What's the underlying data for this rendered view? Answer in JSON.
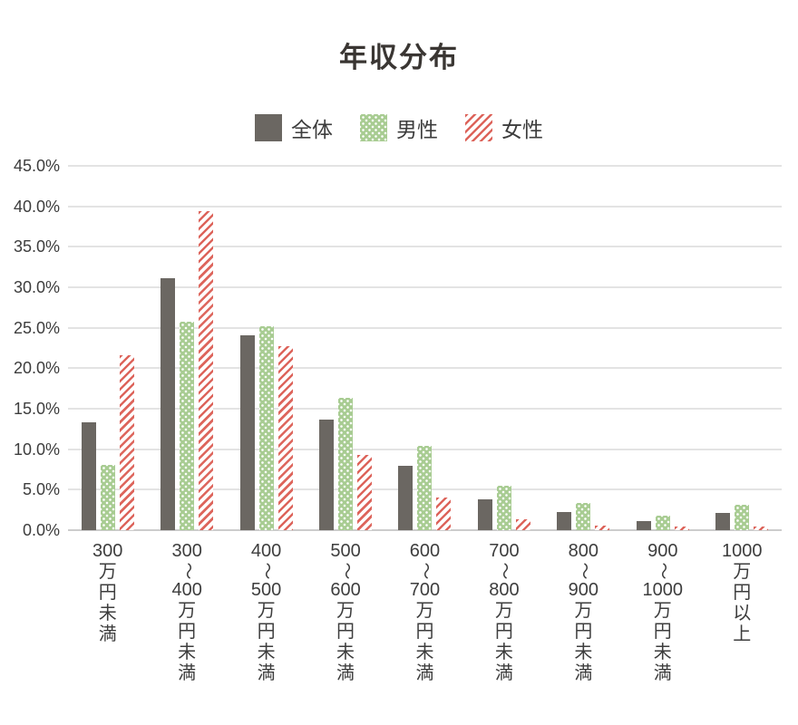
{
  "title": "年収分布",
  "legend": [
    {
      "label": "全体",
      "pattern": "solid"
    },
    {
      "label": "男性",
      "pattern": "dots"
    },
    {
      "label": "女性",
      "pattern": "stripes"
    }
  ],
  "colors": {
    "overall": "#6b6762",
    "male_green": "#a8cc92",
    "female_red": "#dd655c",
    "grid": "#e3e3e3",
    "axis": "#cccccc",
    "title_text": "#3a3633",
    "label_text": "#3d3d3d"
  },
  "chart_data": {
    "type": "bar",
    "title": "年収分布",
    "categories": [
      "300万円未満",
      "300〜400万円未満",
      "400〜500万円未満",
      "500〜600万円未満",
      "600〜700万円未満",
      "700〜800万円未満",
      "800〜900万円未満",
      "900〜1000万円未満",
      "1000万円以上"
    ],
    "category_lines": [
      [
        "300",
        "万",
        "円",
        "未",
        "満"
      ],
      [
        "300",
        "〜",
        "400",
        "万",
        "円",
        "未",
        "満"
      ],
      [
        "400",
        "〜",
        "500",
        "万",
        "円",
        "未",
        "満"
      ],
      [
        "500",
        "〜",
        "600",
        "万",
        "円",
        "未",
        "満"
      ],
      [
        "600",
        "〜",
        "700",
        "万",
        "円",
        "未",
        "満"
      ],
      [
        "700",
        "〜",
        "800",
        "万",
        "円",
        "未",
        "満"
      ],
      [
        "800",
        "〜",
        "900",
        "万",
        "円",
        "未",
        "満"
      ],
      [
        "900",
        "〜",
        "1000",
        "万",
        "円",
        "未",
        "満"
      ],
      [
        "1000",
        "万",
        "円",
        "以",
        "上"
      ]
    ],
    "series": [
      {
        "name": "全体",
        "key": "overall",
        "values": [
          13.3,
          31.1,
          24.1,
          13.7,
          7.9,
          3.8,
          2.2,
          1.1,
          2.1
        ]
      },
      {
        "name": "男性",
        "key": "male",
        "values": [
          8.1,
          25.8,
          25.2,
          16.3,
          10.4,
          5.5,
          3.4,
          1.8,
          3.1
        ]
      },
      {
        "name": "女性",
        "key": "female",
        "values": [
          21.6,
          39.4,
          22.7,
          9.3,
          4.0,
          1.3,
          0.6,
          0.4,
          0.4
        ]
      }
    ],
    "xlabel": "",
    "ylabel": "",
    "ylim": [
      0,
      45
    ],
    "ytick_step": 5,
    "ytick_labels": [
      "0.0%",
      "5.0%",
      "10.0%",
      "15.0%",
      "20.0%",
      "25.0%",
      "30.0%",
      "35.0%",
      "40.0%",
      "45.0%"
    ],
    "grid": true,
    "legend_position": "top"
  }
}
